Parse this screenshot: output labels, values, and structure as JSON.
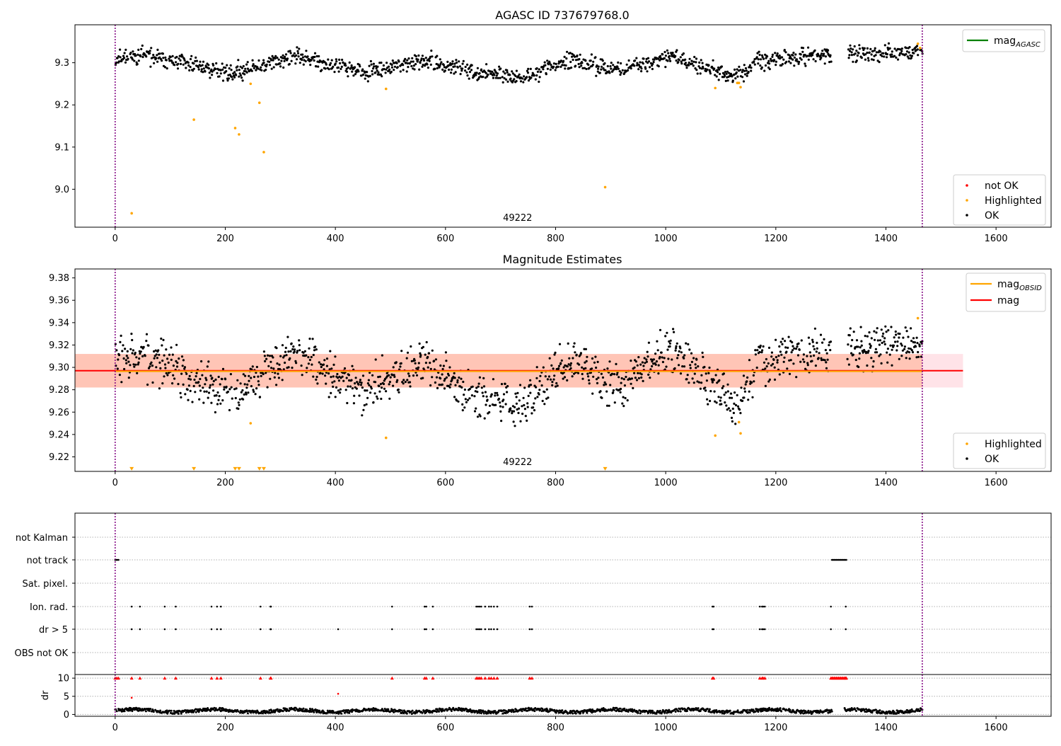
{
  "chart_data": [
    {
      "type": "scatter",
      "title": "AGASC ID 737679768.0",
      "annotation": "49222",
      "xlim": [
        -73,
        1700
      ],
      "ylim": [
        8.91,
        9.39
      ],
      "xticks": [
        0,
        200,
        400,
        600,
        800,
        1000,
        1200,
        1400,
        1600
      ],
      "yticks": [
        9.0,
        9.1,
        9.2,
        9.3
      ],
      "ytick_labels": [
        "9.0",
        "9.1",
        "9.2",
        "9.3"
      ],
      "vlines": [
        0,
        1466
      ],
      "line_legend": [
        {
          "name": "mag",
          "subscript": "AGASC",
          "color": "#008000"
        }
      ],
      "point_legend": [
        {
          "name": "not OK",
          "color": "#ff0000"
        },
        {
          "name": "Highlighted",
          "color": "#ffa500"
        },
        {
          "name": "OK",
          "color": "#000000"
        }
      ],
      "ok_series": {
        "color": "#000000",
        "x_range": [
          0,
          1466
        ],
        "gap": [
          1300,
          1330
        ],
        "trend": [
          [
            0,
            9.31
          ],
          [
            60,
            9.315
          ],
          [
            210,
            9.275
          ],
          [
            330,
            9.315
          ],
          [
            450,
            9.275
          ],
          [
            560,
            9.305
          ],
          [
            640,
            9.28
          ],
          [
            740,
            9.265
          ],
          [
            820,
            9.305
          ],
          [
            920,
            9.285
          ],
          [
            1010,
            9.315
          ],
          [
            1130,
            9.265
          ],
          [
            1170,
            9.305
          ],
          [
            1300,
            9.32
          ],
          [
            1466,
            9.325
          ]
        ],
        "noise": 0.012
      },
      "highlighted": {
        "color": "#ffa500",
        "x": [
          30,
          143,
          218,
          225,
          246,
          262,
          270,
          492,
          890,
          1090,
          1130,
          1133,
          1136,
          1458,
          1462
        ],
        "y": [
          8.943,
          9.165,
          9.145,
          9.13,
          9.25,
          9.205,
          9.088,
          9.238,
          9.005,
          9.24,
          9.252,
          9.252,
          9.242,
          9.345,
          9.335
        ]
      }
    },
    {
      "type": "scatter",
      "title": "Magnitude Estimates",
      "annotation": "49222",
      "xlim": [
        -73,
        1700
      ],
      "ylim": [
        9.207,
        9.388
      ],
      "xticks": [
        0,
        200,
        400,
        600,
        800,
        1000,
        1200,
        1400,
        1600
      ],
      "yticks": [
        9.22,
        9.24,
        9.26,
        9.28,
        9.3,
        9.32,
        9.34,
        9.36,
        9.38
      ],
      "ytick_labels": [
        "9.22",
        "9.24",
        "9.26",
        "9.28",
        "9.30",
        "9.32",
        "9.34",
        "9.36",
        "9.38"
      ],
      "vlines": [
        0,
        1466
      ],
      "mag": 9.297,
      "mag_obsid": 9.2965,
      "band_pink": {
        "x": [
          -73,
          1540
        ],
        "y": [
          9.282,
          9.312
        ],
        "color": "#ffc0cb"
      },
      "band_orange": {
        "x": [
          -73,
          1466
        ],
        "y": [
          9.282,
          9.312
        ],
        "color": "#ffa07a"
      },
      "line_legend": [
        {
          "name": "mag",
          "subscript": "OBSID",
          "color": "#ffa500"
        },
        {
          "name": "mag",
          "subscript": "",
          "color": "#ff0000"
        }
      ],
      "point_legend": [
        {
          "name": "Highlighted",
          "color": "#ffa500"
        },
        {
          "name": "OK",
          "color": "#000000"
        }
      ],
      "ok_series": {
        "color": "#000000",
        "x_range": [
          0,
          1466
        ],
        "gap": [
          1300,
          1330
        ],
        "trend": [
          [
            0,
            9.305
          ],
          [
            60,
            9.31
          ],
          [
            210,
            9.275
          ],
          [
            330,
            9.315
          ],
          [
            450,
            9.275
          ],
          [
            560,
            9.305
          ],
          [
            640,
            9.28
          ],
          [
            740,
            9.265
          ],
          [
            820,
            9.305
          ],
          [
            920,
            9.285
          ],
          [
            1010,
            9.315
          ],
          [
            1130,
            9.265
          ],
          [
            1170,
            9.305
          ],
          [
            1300,
            9.315
          ],
          [
            1466,
            9.32
          ]
        ],
        "noise": 0.012
      },
      "highlighted": {
        "color": "#ffa500",
        "x": [
          246,
          492,
          1090,
          1133,
          1136,
          1458
        ],
        "y": [
          9.25,
          9.237,
          9.239,
          9.251,
          9.241,
          9.344
        ]
      },
      "lower_limits": {
        "color": "#ffa500",
        "x": [
          30,
          143,
          218,
          225,
          262,
          270,
          890
        ],
        "y": 9.209
      }
    },
    {
      "type": "scatter",
      "xlim": [
        -73,
        1700
      ],
      "xticks": [
        0,
        200,
        400,
        600,
        800,
        1000,
        1200,
        1400,
        1600
      ],
      "vlines": [
        0,
        1466
      ],
      "flag_rows": [
        "not Kalman",
        "not track",
        "Sat. pixel.",
        "Ion. rad.",
        "dr > 5",
        "OBS not OK"
      ],
      "flags": {
        "not track": [
          [
            0,
            6
          ],
          [
            1302,
            1328
          ]
        ],
        "Ion. rad.": [
          30,
          45,
          90,
          110,
          175,
          185,
          192,
          264,
          282,
          283,
          503,
          562,
          565,
          577,
          656,
          659,
          662,
          665,
          672,
          679,
          683,
          688,
          694,
          753,
          757,
          1085,
          1087,
          1171,
          1175,
          1177,
          1180,
          1300,
          1327
        ],
        "dr > 5": [
          30,
          45,
          90,
          110,
          175,
          185,
          192,
          264,
          282,
          283,
          405,
          503,
          562,
          565,
          577,
          656,
          659,
          662,
          665,
          672,
          679,
          683,
          688,
          694,
          753,
          757,
          1085,
          1087,
          1171,
          1175,
          1177,
          1180,
          1300,
          1327
        ]
      },
      "dr": {
        "ylabel": "dr",
        "ylim": [
          -0.5,
          11
        ],
        "yticks": [
          0,
          5,
          10
        ],
        "ytick_labels": [
          "0",
          "5",
          "10"
        ],
        "red_points": {
          "color": "#ff0000",
          "x": [
            30,
            405
          ],
          "y": [
            4.6,
            5.7
          ]
        },
        "clipped_value": 10
      }
    }
  ]
}
